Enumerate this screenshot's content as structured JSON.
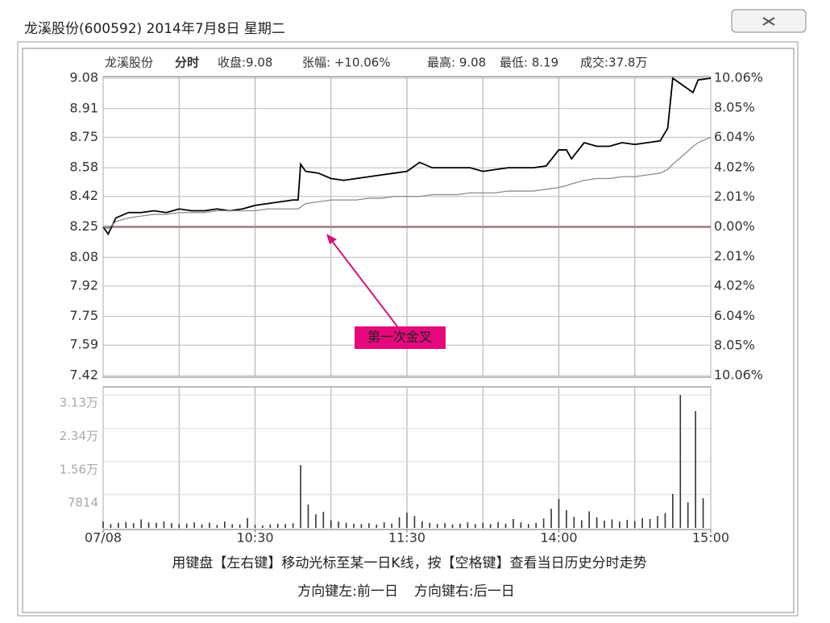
{
  "window_title": "龙溪股份(600592) 2014年7月8日 星期二",
  "chart_data": [
    {
      "type": "line",
      "title": "龙溪股份",
      "subtitle": "分时",
      "stats": [
        "收盘:9.08",
        "张幅: +10.06%",
        "最高: 9.08",
        "最低: 8.19",
        "成交:37.8万"
      ],
      "x": [
        0,
        2,
        5,
        10,
        15,
        20,
        25,
        30,
        35,
        40,
        45,
        50,
        55,
        60,
        65,
        70,
        75,
        77,
        78,
        80,
        85,
        90,
        95,
        100,
        105,
        110,
        115,
        120,
        125,
        130,
        135,
        140,
        145,
        150,
        155,
        160,
        165,
        170,
        175,
        180,
        183,
        185,
        190,
        195,
        200,
        205,
        210,
        215,
        220,
        223,
        225,
        230,
        233,
        235,
        240
      ],
      "series": [
        {
          "color": "#000000",
          "values": [
            8.25,
            8.21,
            8.3,
            8.33,
            8.33,
            8.34,
            8.33,
            8.35,
            8.34,
            8.34,
            8.35,
            8.34,
            8.35,
            8.37,
            8.38,
            8.39,
            8.4,
            8.4,
            8.6,
            8.56,
            8.55,
            8.52,
            8.51,
            8.52,
            8.53,
            8.54,
            8.55,
            8.56,
            8.61,
            8.58,
            8.58,
            8.58,
            8.58,
            8.56,
            8.57,
            8.58,
            8.58,
            8.58,
            8.59,
            8.68,
            8.68,
            8.63,
            8.72,
            8.7,
            8.7,
            8.72,
            8.71,
            8.72,
            8.73,
            8.8,
            9.08,
            9.03,
            9.0,
            9.07,
            9.08
          ]
        },
        {
          "color": "#8c8c8c",
          "values": [
            8.25,
            8.24,
            8.28,
            8.3,
            8.31,
            8.32,
            8.32,
            8.33,
            8.33,
            8.33,
            8.34,
            8.34,
            8.34,
            8.34,
            8.35,
            8.35,
            8.35,
            8.35,
            8.36,
            8.38,
            8.39,
            8.4,
            8.4,
            8.4,
            8.41,
            8.41,
            8.42,
            8.42,
            8.42,
            8.43,
            8.43,
            8.43,
            8.44,
            8.44,
            8.44,
            8.45,
            8.45,
            8.45,
            8.46,
            8.47,
            8.48,
            8.49,
            8.51,
            8.52,
            8.52,
            8.53,
            8.53,
            8.54,
            8.55,
            8.57,
            8.6,
            8.66,
            8.7,
            8.72,
            8.75
          ]
        }
      ],
      "xlim": [
        0,
        240
      ],
      "xgrid": [
        0,
        30,
        60,
        90,
        120,
        150,
        180,
        210,
        240
      ],
      "ylim": [
        7.42,
        9.08
      ],
      "yticks": [
        9.08,
        8.91,
        8.75,
        8.58,
        8.42,
        8.25,
        8.08,
        7.92,
        7.75,
        7.59,
        7.42
      ],
      "y2lim": [
        -10.06,
        10.06
      ],
      "y2ticks": [
        {
          "value": 10.06,
          "label": "10.06%"
        },
        {
          "value": 8.05,
          "label": "8.05%"
        },
        {
          "value": 6.04,
          "label": "6.04%"
        },
        {
          "value": 4.02,
          "label": "4.02%"
        },
        {
          "value": 2.01,
          "label": "2.01%"
        },
        {
          "value": 0,
          "label": "0.00%"
        },
        {
          "value": -2.01,
          "label": "2.01%"
        },
        {
          "value": -4.02,
          "label": "4.02%"
        },
        {
          "value": -6.04,
          "label": "6.04%"
        },
        {
          "value": -8.05,
          "label": "8.05%"
        },
        {
          "value": -10.06,
          "label": "10.06%"
        }
      ],
      "grid": true,
      "annotation": "第一次金叉"
    },
    {
      "type": "bar",
      "color": "#333333",
      "x": [
        0,
        3,
        6,
        9,
        12,
        15,
        18,
        21,
        24,
        27,
        30,
        33,
        36,
        39,
        42,
        45,
        48,
        51,
        54,
        57,
        60,
        63,
        66,
        69,
        72,
        75,
        78,
        81,
        84,
        87,
        90,
        93,
        96,
        99,
        102,
        105,
        108,
        111,
        114,
        117,
        120,
        123,
        126,
        129,
        132,
        135,
        138,
        141,
        144,
        147,
        150,
        153,
        156,
        159,
        162,
        165,
        168,
        171,
        174,
        177,
        180,
        183,
        186,
        189,
        192,
        195,
        198,
        201,
        204,
        207,
        210,
        213,
        216,
        219,
        222,
        225,
        228,
        231,
        234,
        237
      ],
      "values": [
        1500,
        900,
        1200,
        1400,
        1100,
        2000,
        1300,
        1200,
        1500,
        1100,
        900,
        1000,
        1300,
        800,
        1200,
        700,
        1500,
        900,
        800,
        2300,
        700,
        600,
        800,
        1000,
        900,
        1100,
        14800,
        5500,
        3200,
        3800,
        1800,
        1500,
        1200,
        1000,
        900,
        1100,
        800,
        1300,
        1000,
        2500,
        3600,
        2800,
        1600,
        1200,
        900,
        1100,
        800,
        1000,
        1300,
        900,
        1200,
        900,
        1400,
        1000,
        2100,
        1300,
        900,
        1200,
        2200,
        4500,
        6800,
        4200,
        2600,
        1800,
        3900,
        2500,
        1700,
        2000,
        1500,
        1900,
        1600,
        2300,
        2100,
        2800,
        3500,
        8000,
        31300,
        6000,
        27500,
        7000
      ],
      "xlim": [
        0,
        240
      ],
      "xticks": [
        {
          "value": 0,
          "label": "07/08"
        },
        {
          "value": 60,
          "label": "10:30"
        },
        {
          "value": 120,
          "label": "11:30"
        },
        {
          "value": 180,
          "label": "14:00"
        },
        {
          "value": 240,
          "label": "15:00"
        }
      ],
      "ylim": [
        0,
        33200
      ],
      "yticks": [
        {
          "value": 31300,
          "label": "3.13万"
        },
        {
          "value": 23400,
          "label": "2.34万"
        },
        {
          "value": 15600,
          "label": "1.56万"
        },
        7814
      ],
      "grid": true
    }
  ],
  "footer": {
    "hint": "用键盘【左右键】移动光标至某一日K线，按【空格键】查看当日历史分时走势",
    "nav": [
      "方向键左:前一日",
      "方向键右:后一日"
    ]
  }
}
